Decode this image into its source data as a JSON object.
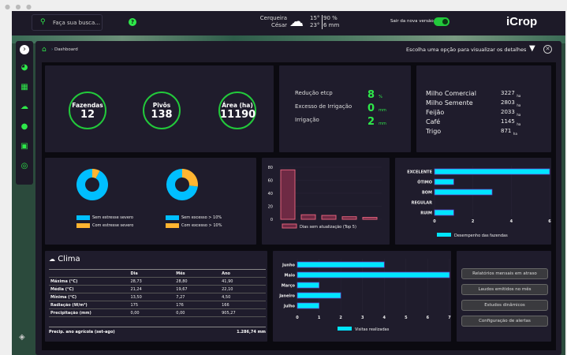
{
  "header": {
    "search_placeholder": "Faça sua busca...",
    "help_icon": "question-icon",
    "weather": {
      "city_line1": "Cerqueira",
      "city_line2": "César",
      "icon": "cloud-rain-icon",
      "temp_min": "15°",
      "temp_max": "23°",
      "humidity": "90 %",
      "rain": "6 mm"
    },
    "toggle_label": "Sair da nova versão",
    "toggle_on": true,
    "logo": "iCrop"
  },
  "breadcrumb": {
    "home_icon": "home-icon",
    "current": "Dashboard"
  },
  "filter_hint": "Escolha uma opção para visualizar os detalhes",
  "sidebar": {
    "items": [
      "chevron-right-icon",
      "chart-pie-icon",
      "map-icon",
      "cloud-rain-icon",
      "water-drop-icon",
      "calendar-check-icon",
      "satellite-icon"
    ],
    "footer_icon": "layers-icon"
  },
  "kpis": [
    {
      "label": "Fazendas",
      "value": "12"
    },
    {
      "label": "Pivôs",
      "value": "138"
    },
    {
      "label": "Área (ha)",
      "value": "11190"
    }
  ],
  "irrigation": [
    {
      "label": "Redução etcp",
      "value": "8",
      "unit": "%"
    },
    {
      "label": "Excesso de Irrigação",
      "value": "0",
      "unit": "mm"
    },
    {
      "label": "Irrigação",
      "value": "2",
      "unit": "mm"
    }
  ],
  "crops": [
    {
      "name": "Milho Comercial",
      "area": "3227",
      "unit": "ha"
    },
    {
      "name": "Milho Semente",
      "area": "2803",
      "unit": "ha"
    },
    {
      "name": "Feijão",
      "area": "2033",
      "unit": "ha"
    },
    {
      "name": "Café",
      "area": "1145",
      "unit": "ha"
    },
    {
      "name": "Trigo",
      "area": "871",
      "unit": "ha"
    }
  ],
  "colors": {
    "accent": "#2ee84a",
    "blue": "#00bfff",
    "orange": "#ffb530",
    "pink": "#e0607a",
    "cyan": "#00e5ff"
  },
  "chart_data": [
    {
      "type": "pie",
      "donut": true,
      "series": [
        {
          "name": "Sem estresse severo",
          "value": 92
        },
        {
          "name": "Com estresse severo",
          "value": 8
        }
      ]
    },
    {
      "type": "pie",
      "donut": true,
      "series": [
        {
          "name": "Sem excesso > 10%",
          "value": 73
        },
        {
          "name": "Com excesso > 10%",
          "value": 27
        }
      ]
    },
    {
      "type": "bar",
      "orientation": "vertical",
      "categories": [
        "1",
        "2",
        "3",
        "4",
        "5"
      ],
      "series": [
        {
          "name": "Dias sem atualização (Top 5)",
          "values": [
            76,
            7,
            6,
            4,
            3
          ]
        }
      ],
      "ylim": [
        0,
        80
      ],
      "yticks": [
        "0",
        "20",
        "40",
        "60",
        "80"
      ]
    },
    {
      "type": "bar",
      "orientation": "horizontal",
      "categories": [
        "EXCELENTE",
        "ÓTIMO",
        "BOM",
        "REGULAR",
        "RUIM"
      ],
      "series": [
        {
          "name": "Desempenho das fazendas",
          "values": [
            6,
            1,
            3,
            0,
            1
          ]
        }
      ],
      "xlim": [
        0,
        6
      ],
      "xticks": [
        "0",
        "2",
        "4",
        "6"
      ]
    },
    {
      "type": "bar",
      "orientation": "horizontal",
      "categories": [
        "Junho",
        "Maio",
        "Março",
        "Janeiro",
        "Julho"
      ],
      "series": [
        {
          "name": "Visitas realizadas",
          "values": [
            4,
            7,
            1,
            2,
            1
          ]
        }
      ],
      "xlim": [
        0,
        7
      ],
      "xticks": [
        "0",
        "1",
        "2",
        "3",
        "4",
        "5",
        "6",
        "7"
      ]
    }
  ],
  "climate": {
    "title": "Clima",
    "icon": "cloud-sun-icon",
    "columns": [
      "",
      "Dia",
      "Mês",
      "Ano"
    ],
    "rows": [
      [
        "Máxima (°C)",
        "28,73",
        "28,80",
        "41,90"
      ],
      [
        "Média (°C)",
        "21,24",
        "19,67",
        "22,10"
      ],
      [
        "Mínima (°C)",
        "13,50",
        "7,27",
        "4,50"
      ],
      [
        "Radiação (W/m²)",
        "175",
        "176",
        "166"
      ],
      [
        "Precipitação (mm)",
        "0,00",
        "0,00",
        "905,27"
      ]
    ],
    "footer_label": "Precip. ano agrícola (set-ago)",
    "footer_value": "1.286,74 mm"
  },
  "actions": [
    "Relatórios mensais em atraso",
    "Laudos emitidos no mês",
    "Estudos dinâmicos",
    "Configuração de alertas"
  ]
}
